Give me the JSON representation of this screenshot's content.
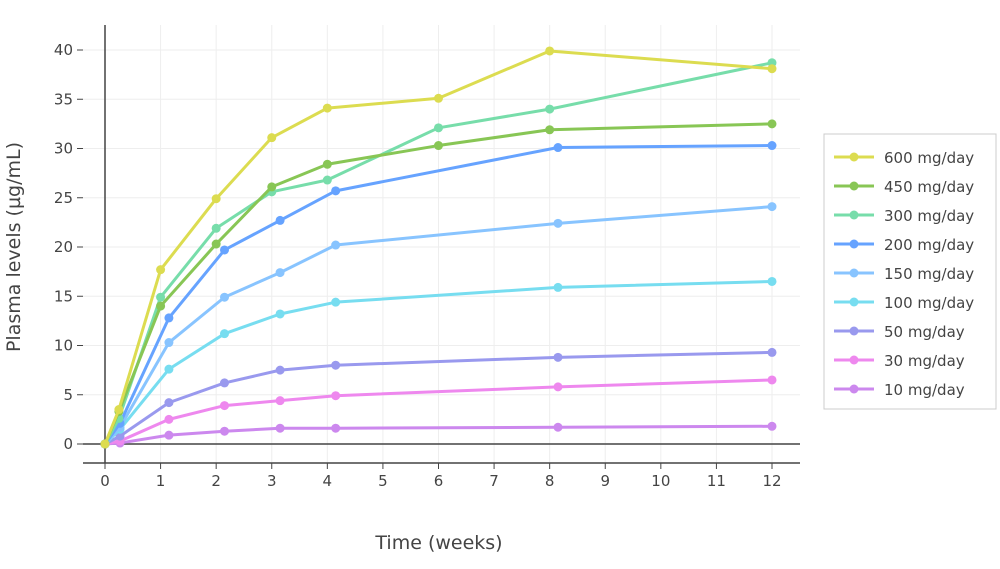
{
  "chart_data": {
    "type": "line",
    "title": "",
    "xlabel": "Time (weeks)",
    "ylabel": "Plasma levels (µg/mL)",
    "xlim": [
      -0.4,
      12.5
    ],
    "ylim": [
      -1.5,
      42
    ],
    "xticks": [
      0,
      1,
      2,
      3,
      4,
      5,
      6,
      7,
      8,
      9,
      10,
      11,
      12
    ],
    "yticks": [
      0,
      5,
      10,
      15,
      20,
      25,
      30,
      35,
      40
    ],
    "grid": true,
    "legend_position": "right",
    "series": [
      {
        "name": "600 mg/day",
        "color": "#dcdc50",
        "x": [
          0,
          0.25,
          1,
          2,
          3,
          4,
          6,
          8,
          12
        ],
        "y": [
          0,
          3.5,
          17.7,
          24.9,
          31.1,
          34.1,
          35.1,
          39.9,
          38.1
        ]
      },
      {
        "name": "450 mg/day",
        "color": "#88c655",
        "x": [
          0,
          0.25,
          1,
          2,
          3,
          4,
          6,
          8,
          12
        ],
        "y": [
          0,
          3.3,
          14.0,
          20.3,
          26.1,
          28.4,
          30.3,
          31.9,
          32.5
        ]
      },
      {
        "name": "300 mg/day",
        "color": "#77ddaa",
        "x": [
          0,
          0.25,
          1,
          2,
          3,
          4,
          6,
          8,
          12
        ],
        "y": [
          0,
          2.6,
          14.9,
          21.9,
          25.6,
          26.8,
          32.1,
          34.0,
          38.7
        ]
      },
      {
        "name": "200 mg/day",
        "color": "#66a3ff",
        "x": [
          0,
          0.27,
          1.15,
          2.15,
          3.15,
          4.15,
          8.15,
          12
        ],
        "y": [
          0,
          2.1,
          12.8,
          19.7,
          22.7,
          25.7,
          30.1,
          30.3
        ]
      },
      {
        "name": "150 mg/day",
        "color": "#88c4ff",
        "x": [
          0,
          0.27,
          1.15,
          2.15,
          3.15,
          4.15,
          8.15,
          12
        ],
        "y": [
          0,
          1.7,
          10.3,
          14.9,
          17.4,
          20.2,
          22.4,
          24.1
        ]
      },
      {
        "name": "100 mg/day",
        "color": "#77ddf0",
        "x": [
          0,
          0.27,
          1.15,
          2.15,
          3.15,
          4.15,
          8.15,
          12
        ],
        "y": [
          0,
          1.5,
          7.6,
          11.2,
          13.2,
          14.4,
          15.9,
          16.5
        ]
      },
      {
        "name": "50 mg/day",
        "color": "#9999ee",
        "x": [
          0,
          0.27,
          1.15,
          2.15,
          3.15,
          4.15,
          8.15,
          12
        ],
        "y": [
          0,
          0.8,
          4.2,
          6.2,
          7.5,
          8.0,
          8.8,
          9.3
        ]
      },
      {
        "name": "30 mg/day",
        "color": "#ee88ee",
        "x": [
          0,
          0.27,
          1.15,
          2.15,
          3.15,
          4.15,
          8.15,
          12
        ],
        "y": [
          0,
          0.3,
          2.5,
          3.9,
          4.4,
          4.9,
          5.8,
          6.5
        ]
      },
      {
        "name": "10 mg/day",
        "color": "#cc88ee",
        "x": [
          0,
          0.27,
          1.15,
          2.15,
          3.15,
          4.15,
          8.15,
          12
        ],
        "y": [
          0,
          0.1,
          0.9,
          1.3,
          1.6,
          1.6,
          1.7,
          1.8
        ]
      }
    ]
  }
}
